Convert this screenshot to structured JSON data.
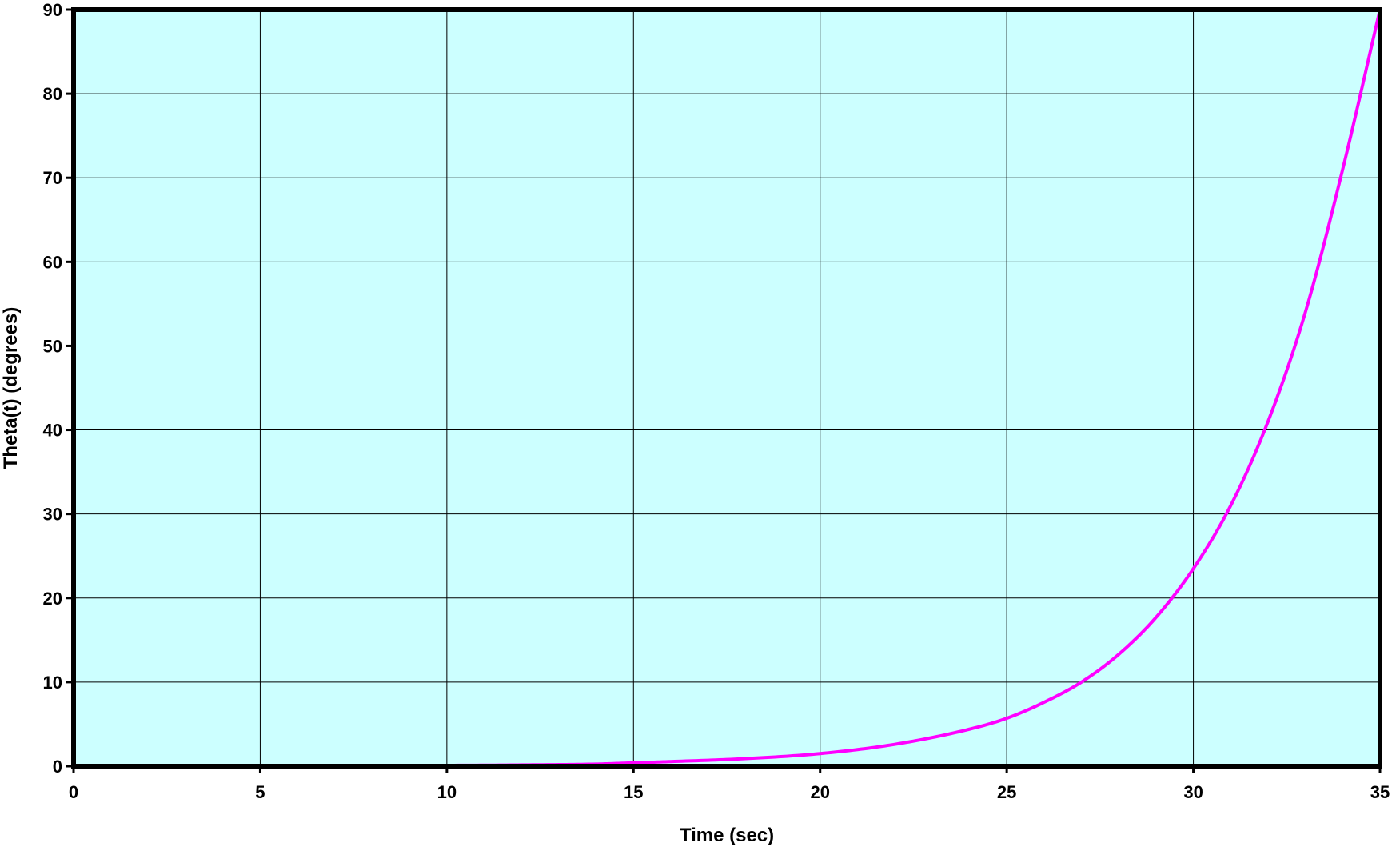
{
  "chart_data": {
    "type": "line",
    "title": "",
    "xlabel": "Time (sec)",
    "ylabel": "Theta(t) (degrees)",
    "xlim": [
      0,
      35
    ],
    "ylim": [
      0,
      90
    ],
    "xticks": [
      "0",
      "5",
      "10",
      "15",
      "20",
      "25",
      "30",
      "35"
    ],
    "yticks": [
      "0",
      "10",
      "20",
      "30",
      "40",
      "50",
      "60",
      "70",
      "80",
      "90"
    ],
    "grid": true,
    "legend": "none",
    "colors": {
      "plot_background": "#ccffff",
      "series": "#ff00ff",
      "grid": "#000000",
      "frame": "#000000"
    },
    "series": [
      {
        "x": [
          0,
          5,
          10,
          12,
          14,
          15,
          16,
          18,
          20,
          22,
          24,
          25,
          26,
          27,
          28,
          29,
          30,
          31,
          32,
          33,
          34,
          35
        ],
        "y": [
          0.1,
          0.1,
          0.1,
          0.15,
          0.25,
          0.4,
          0.55,
          0.9,
          1.5,
          2.6,
          4.4,
          5.7,
          7.6,
          10.0,
          13.3,
          17.7,
          23.5,
          31.0,
          41.0,
          54.0,
          71.0,
          90.0
        ]
      }
    ]
  }
}
